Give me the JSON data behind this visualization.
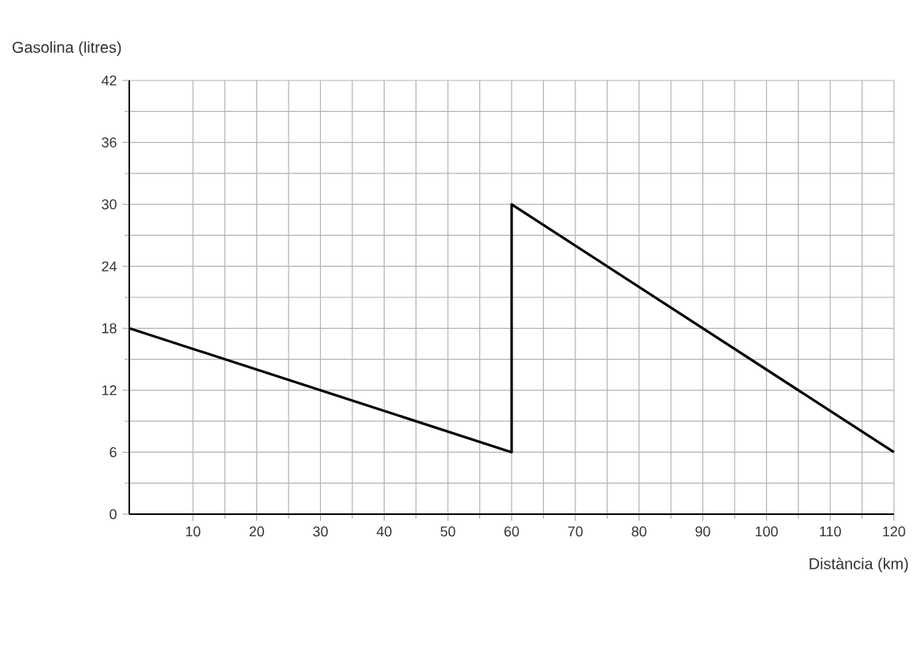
{
  "chart_data": {
    "type": "line",
    "xlabel": "Distància (km)",
    "ylabel": "Gasolina (litres)",
    "x": [
      0,
      60,
      60,
      120
    ],
    "values": [
      18,
      6,
      30,
      6
    ],
    "color": "#000000",
    "xlim": [
      0,
      120
    ],
    "xticks": [
      10,
      20,
      30,
      40,
      50,
      60,
      70,
      80,
      90,
      100,
      110,
      120
    ],
    "ylim": [
      0,
      42
    ],
    "yticks": [
      0,
      6,
      12,
      18,
      24,
      30,
      36,
      42
    ],
    "grid": true,
    "marker": "none",
    "line_style": "solid"
  }
}
